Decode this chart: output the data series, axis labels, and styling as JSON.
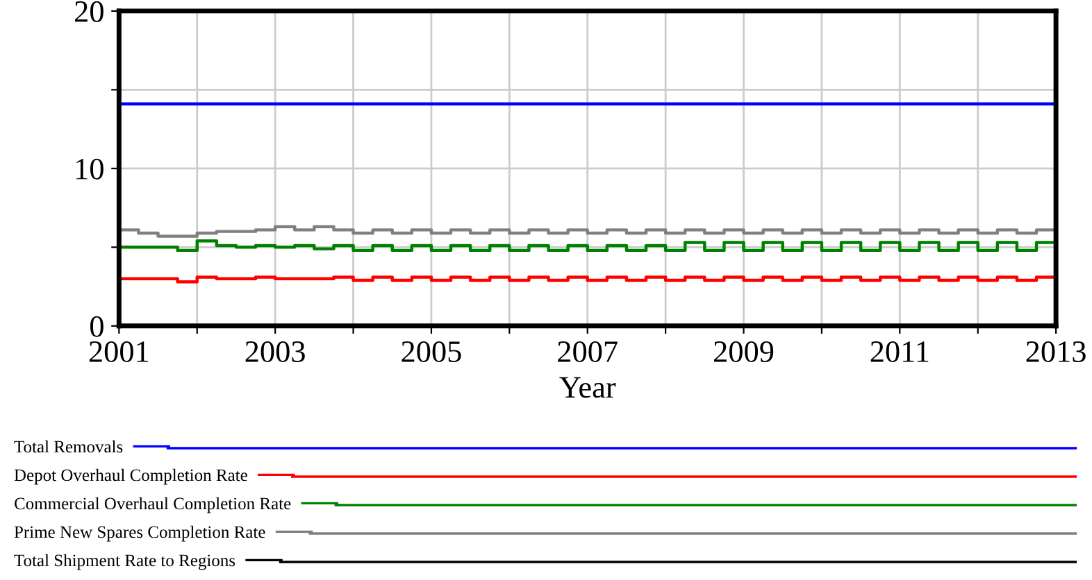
{
  "chart_data": {
    "type": "step",
    "xlabel": "Year",
    "xlim": [
      2001,
      2013
    ],
    "ylim": [
      0,
      20
    ],
    "xticks": [
      2001,
      {
        "value": 2002,
        "label": null
      },
      2003,
      {
        "value": 2004,
        "label": null
      },
      2005,
      {
        "value": 2006,
        "label": null
      },
      2007,
      {
        "value": 2008,
        "label": null
      },
      2009,
      {
        "value": 2010,
        "label": null
      },
      2011,
      {
        "value": 2012,
        "label": null
      },
      2013
    ],
    "yticks": [
      0,
      {
        "value": 5,
        "label": null
      },
      10,
      {
        "value": 15,
        "label": null
      },
      20
    ],
    "grid": true,
    "legend": "bottom",
    "series": [
      {
        "name": "Total Removals",
        "color": "#0000ff",
        "x": [
          2001,
          2013
        ],
        "values": [
          14.1,
          14.1
        ]
      },
      {
        "name": "Depot Overhaul Completion Rate",
        "color": "#ff0000",
        "x": [
          2001,
          2001.25,
          2001.5,
          2001.75,
          2002,
          2002.25,
          2002.5,
          2002.75,
          2003,
          2003.25,
          2003.5,
          2003.75,
          2004,
          2004.25,
          2004.5,
          2004.75,
          2005,
          2005.25,
          2005.5,
          2005.75,
          2006,
          2006.25,
          2006.5,
          2006.75,
          2007,
          2007.25,
          2007.5,
          2007.75,
          2008,
          2008.25,
          2008.5,
          2008.75,
          2009,
          2009.25,
          2009.5,
          2009.75,
          2010,
          2010.25,
          2010.5,
          2010.75,
          2011,
          2011.25,
          2011.5,
          2011.75,
          2012,
          2012.25,
          2012.5,
          2012.75,
          2013
        ],
        "values": [
          3.0,
          3.0,
          3.0,
          2.8,
          3.1,
          3.0,
          3.0,
          3.1,
          3.0,
          3.0,
          3.0,
          3.1,
          2.9,
          3.1,
          2.9,
          3.1,
          2.9,
          3.1,
          2.9,
          3.1,
          2.9,
          3.1,
          2.9,
          3.1,
          2.9,
          3.1,
          2.9,
          3.1,
          2.9,
          3.1,
          2.9,
          3.1,
          2.9,
          3.1,
          2.9,
          3.1,
          2.9,
          3.1,
          2.9,
          3.1,
          2.9,
          3.1,
          2.9,
          3.1,
          2.9,
          3.1,
          2.9,
          3.1,
          3.0
        ]
      },
      {
        "name": "Commercial Overhaul Completion Rate",
        "color": "#008000",
        "x": [
          2001,
          2001.25,
          2001.5,
          2001.75,
          2002,
          2002.25,
          2002.5,
          2002.75,
          2003,
          2003.25,
          2003.5,
          2003.75,
          2004,
          2004.25,
          2004.5,
          2004.75,
          2005,
          2005.25,
          2005.5,
          2005.75,
          2006,
          2006.25,
          2006.5,
          2006.75,
          2007,
          2007.25,
          2007.5,
          2007.75,
          2008,
          2008.25,
          2008.5,
          2008.75,
          2009,
          2009.25,
          2009.5,
          2009.75,
          2010,
          2010.25,
          2010.5,
          2010.75,
          2011,
          2011.25,
          2011.5,
          2011.75,
          2012,
          2012.25,
          2012.5,
          2012.75,
          2013
        ],
        "values": [
          5.0,
          5.0,
          5.0,
          4.8,
          5.4,
          5.1,
          5.0,
          5.1,
          5.0,
          5.1,
          4.9,
          5.1,
          4.8,
          5.1,
          4.8,
          5.1,
          4.8,
          5.1,
          4.8,
          5.1,
          4.8,
          5.1,
          4.8,
          5.1,
          4.8,
          5.1,
          4.8,
          5.1,
          4.8,
          5.3,
          4.8,
          5.3,
          4.8,
          5.3,
          4.8,
          5.3,
          4.8,
          5.3,
          4.8,
          5.3,
          4.8,
          5.3,
          4.8,
          5.3,
          4.8,
          5.3,
          4.8,
          5.3,
          5.0
        ]
      },
      {
        "name": "Prime New Spares Completion Rate",
        "color": "#808080",
        "x": [
          2001,
          2001.25,
          2001.5,
          2001.75,
          2002,
          2002.25,
          2002.5,
          2002.75,
          2003,
          2003.25,
          2003.5,
          2003.75,
          2004,
          2004.25,
          2004.5,
          2004.75,
          2005,
          2005.25,
          2005.5,
          2005.75,
          2006,
          2006.25,
          2006.5,
          2006.75,
          2007,
          2007.25,
          2007.5,
          2007.75,
          2008,
          2008.25,
          2008.5,
          2008.75,
          2009,
          2009.25,
          2009.5,
          2009.75,
          2010,
          2010.25,
          2010.5,
          2010.75,
          2011,
          2011.25,
          2011.5,
          2011.75,
          2012,
          2012.25,
          2012.5,
          2012.75,
          2013
        ],
        "values": [
          6.1,
          5.9,
          5.7,
          5.7,
          5.9,
          6.0,
          6.0,
          6.1,
          6.3,
          6.1,
          6.3,
          6.1,
          5.9,
          6.1,
          5.9,
          6.1,
          5.9,
          6.1,
          5.9,
          6.1,
          5.9,
          6.1,
          5.9,
          6.1,
          5.9,
          6.1,
          5.9,
          6.1,
          5.9,
          6.1,
          5.9,
          6.1,
          5.9,
          6.1,
          5.9,
          6.1,
          5.9,
          6.1,
          5.9,
          6.1,
          5.9,
          6.1,
          5.9,
          6.1,
          5.9,
          6.1,
          5.9,
          6.1,
          6.1
        ]
      },
      {
        "name": "Total Shipment Rate to Regions",
        "color": "#000000",
        "values": [
          null,
          null
        ]
      }
    ]
  }
}
